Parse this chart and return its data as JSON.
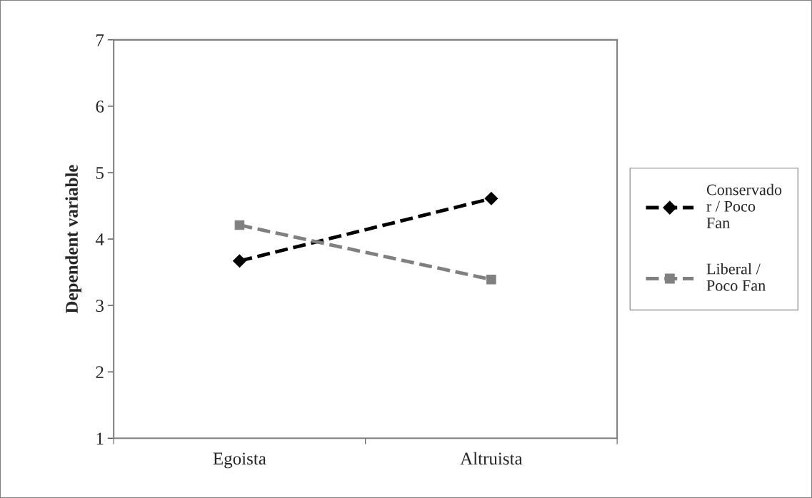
{
  "chart_data": {
    "type": "line",
    "ylabel": "Dependent variable",
    "categories": [
      "Egoista",
      "Altruista"
    ],
    "series": [
      {
        "name": "Conservador / Poco Fan",
        "color": "#000000",
        "values": [
          3.67,
          4.61
        ],
        "marker": "diamond"
      },
      {
        "name": "Liberal / Poco Fan",
        "color": "#808080",
        "values": [
          4.21,
          3.39
        ],
        "marker": "square"
      }
    ],
    "ylim": [
      1,
      7
    ],
    "yticks": [
      1,
      2,
      3,
      4,
      5,
      6,
      7
    ],
    "grid": false,
    "legend": "right",
    "line_style": "dashed"
  }
}
